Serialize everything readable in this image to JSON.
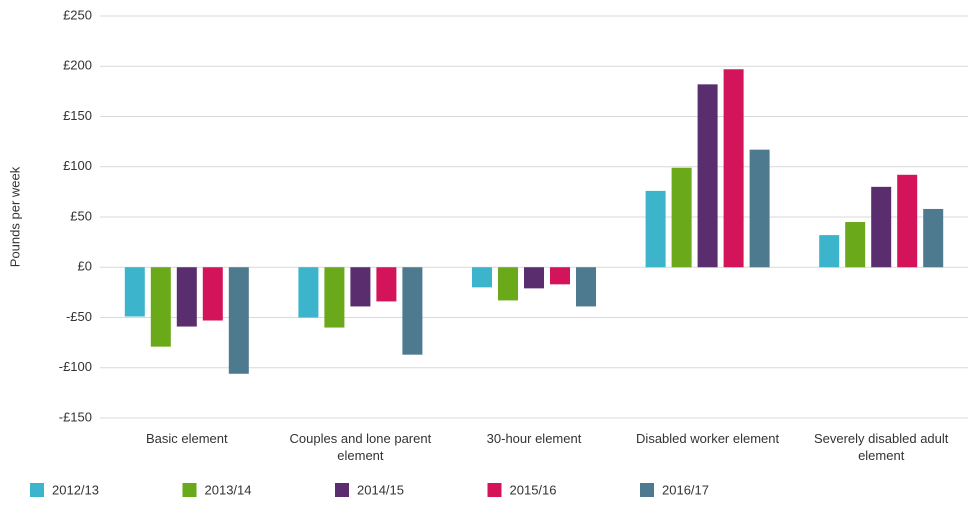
{
  "chart_data": {
    "type": "bar",
    "y_label": "Pounds per week",
    "categories": [
      "Basic element",
      "Couples and lone parent element",
      "30-hour element",
      "Disabled worker element",
      "Severely disabled adult element"
    ],
    "series": [
      {
        "name": "2012/13",
        "color": "#3cb4cc",
        "values": [
          -49,
          -50,
          -20,
          76,
          32
        ]
      },
      {
        "name": "2013/14",
        "color": "#6aaa1a",
        "values": [
          -79,
          -60,
          -33,
          99,
          45
        ]
      },
      {
        "name": "2014/15",
        "color": "#5a2d6e",
        "values": [
          -59,
          -39,
          -21,
          182,
          80
        ]
      },
      {
        "name": "2015/16",
        "color": "#d4145a",
        "values": [
          -53,
          -34,
          -17,
          197,
          92
        ]
      },
      {
        "name": "2016/17",
        "color": "#4e7a8f",
        "values": [
          -106,
          -87,
          -39,
          117,
          58
        ]
      }
    ],
    "ylim": [
      -150,
      250
    ],
    "yticks": [
      {
        "value": -150,
        "label": "-£150"
      },
      {
        "value": -100,
        "label": "-£100"
      },
      {
        "value": -50,
        "label": "-£50"
      },
      {
        "value": 0,
        "label": "£0"
      },
      {
        "value": 50,
        "label": "£50"
      },
      {
        "value": 100,
        "label": "£100"
      },
      {
        "value": 150,
        "label": "£150"
      },
      {
        "value": 200,
        "label": "£200"
      },
      {
        "value": 250,
        "label": "£250"
      }
    ],
    "grid": true
  }
}
